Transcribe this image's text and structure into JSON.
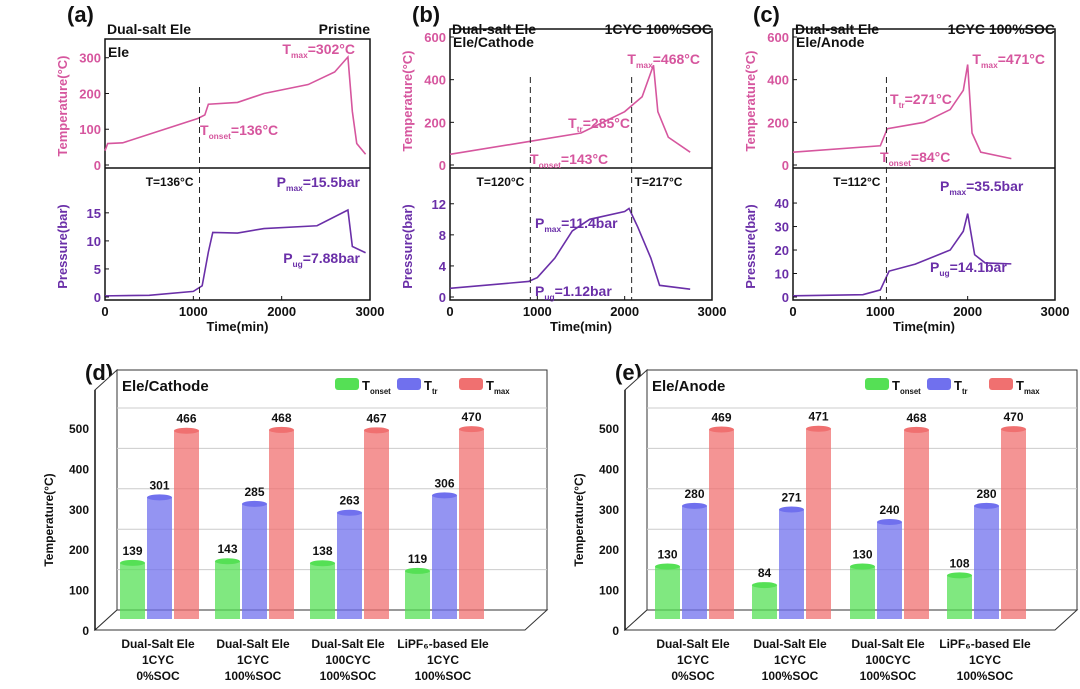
{
  "colors": {
    "temp": "#d6569e",
    "pres": "#6a2fa8",
    "green": "#55e055",
    "blue": "#7070ee",
    "red": "#f07070"
  },
  "chart_data": [
    {
      "type": "line",
      "panel": "(a)",
      "header_left": "Dual-salt Ele",
      "header_right": "Pristine",
      "sample": "Ele",
      "xlabel": "Time(min)",
      "xlim": [
        0,
        3000
      ],
      "xticks": [
        "0",
        "1000",
        "2000",
        "3000"
      ],
      "temp": {
        "ylabel": "Temperature(°C)",
        "ylim": [
          0,
          330
        ],
        "yticks": [
          "0",
          "100",
          "200",
          "300"
        ],
        "points": [
          [
            0,
            40
          ],
          [
            30,
            60
          ],
          [
            200,
            62
          ],
          [
            1050,
            130
          ],
          [
            1130,
            140
          ],
          [
            1170,
            170
          ],
          [
            1500,
            175
          ],
          [
            1800,
            200
          ],
          [
            2300,
            225
          ],
          [
            2600,
            260
          ],
          [
            2750,
            302
          ],
          [
            2800,
            150
          ],
          [
            2850,
            60
          ],
          [
            2950,
            30
          ]
        ]
      },
      "pres": {
        "ylabel": "Pressure(bar)",
        "ylim": [
          0,
          18
        ],
        "yticks": [
          "0",
          "5",
          "10",
          "15"
        ],
        "points": [
          [
            0,
            0.2
          ],
          [
            500,
            0.3
          ],
          [
            1000,
            1
          ],
          [
            1100,
            2
          ],
          [
            1170,
            8
          ],
          [
            1220,
            11.5
          ],
          [
            1500,
            11.4
          ],
          [
            1800,
            12.2
          ],
          [
            2400,
            12.7
          ],
          [
            2750,
            15.5
          ],
          [
            2800,
            9
          ],
          [
            2950,
            7.88
          ]
        ]
      },
      "vline": 1070,
      "vline_label": "T=136°C",
      "annotations": [
        {
          "main": "T",
          "sub": "max",
          "rest": "=302°C"
        },
        {
          "main": "T",
          "sub": "onset",
          "rest": "=136°C"
        },
        {
          "main": "P",
          "sub": "max",
          "rest": "=15.5bar"
        },
        {
          "main": "P",
          "sub": "ug",
          "rest": "=7.88bar"
        }
      ]
    },
    {
      "type": "line",
      "panel": "(b)",
      "header_left": "Dual-salt Ele",
      "header_right": "1CYC 100%SOC",
      "sample": "Ele/Cathode",
      "xlabel": "Time(min)",
      "xlim": [
        0,
        3000
      ],
      "xticks": [
        "0",
        "1000",
        "2000",
        "3000"
      ],
      "temp": {
        "ylabel": "Temperature(°C)",
        "ylim": [
          0,
          600
        ],
        "yticks": [
          "0",
          "200",
          "400",
          "600"
        ],
        "points": [
          [
            0,
            50
          ],
          [
            900,
            110
          ],
          [
            1500,
            150
          ],
          [
            2000,
            250
          ],
          [
            2200,
            320
          ],
          [
            2330,
            468
          ],
          [
            2380,
            250
          ],
          [
            2500,
            130
          ],
          [
            2750,
            60
          ]
        ]
      },
      "pres": {
        "ylabel": "Pressure(bar)",
        "ylim": [
          0,
          13
        ],
        "yticks": [
          "0",
          "4",
          "8",
          "12"
        ],
        "points": [
          [
            0,
            1.12
          ],
          [
            900,
            2
          ],
          [
            1000,
            2.5
          ],
          [
            1200,
            5
          ],
          [
            1400,
            8.5
          ],
          [
            1600,
            10
          ],
          [
            2000,
            11
          ],
          [
            2050,
            11.4
          ],
          [
            2150,
            9
          ],
          [
            2300,
            5
          ],
          [
            2400,
            1.5
          ],
          [
            2750,
            1
          ]
        ]
      },
      "vline": 920,
      "vline_label": "T=120°C",
      "vline2": 2080,
      "vline2_label": "T=217°C",
      "annotations": [
        {
          "main": "T",
          "sub": "max",
          "rest": "=468°C"
        },
        {
          "main": "T",
          "sub": "tr",
          "rest": "=285°C"
        },
        {
          "main": "T",
          "sub": "onset",
          "rest": "=143°C"
        },
        {
          "main": "P",
          "sub": "max",
          "rest": "=11.4bar"
        },
        {
          "main": "P",
          "sub": "ug",
          "rest": "=1.12bar"
        }
      ]
    },
    {
      "type": "line",
      "panel": "(c)",
      "header_left": "Dual-salt Ele",
      "header_right": "1CYC 100%SOC",
      "sample": "Ele/Anode",
      "xlabel": "Time(min)",
      "xlim": [
        0,
        3000
      ],
      "xticks": [
        "0",
        "1000",
        "2000",
        "3000"
      ],
      "temp": {
        "ylabel": "Temperature(°C)",
        "ylim": [
          0,
          600
        ],
        "yticks": [
          "0",
          "200",
          "400",
          "600"
        ],
        "points": [
          [
            0,
            60
          ],
          [
            1000,
            90
          ],
          [
            1080,
            170
          ],
          [
            1500,
            200
          ],
          [
            1800,
            260
          ],
          [
            1950,
            350
          ],
          [
            2000,
            471
          ],
          [
            2050,
            150
          ],
          [
            2150,
            60
          ],
          [
            2500,
            30
          ]
        ]
      },
      "pres": {
        "ylabel": "Pressure(bar)",
        "ylim": [
          0,
          43
        ],
        "yticks": [
          "0",
          "10",
          "20",
          "30",
          "40"
        ],
        "points": [
          [
            0,
            0.5
          ],
          [
            800,
            1
          ],
          [
            1000,
            3
          ],
          [
            1100,
            11
          ],
          [
            1400,
            14
          ],
          [
            1800,
            20
          ],
          [
            1950,
            28
          ],
          [
            2000,
            35.5
          ],
          [
            2080,
            18
          ],
          [
            2200,
            14.5
          ],
          [
            2500,
            14.1
          ]
        ]
      },
      "vline": 1070,
      "vline_label": "T=112°C",
      "annotations": [
        {
          "main": "T",
          "sub": "max",
          "rest": "=471°C"
        },
        {
          "main": "T",
          "sub": "tr",
          "rest": "=271°C"
        },
        {
          "main": "T",
          "sub": "onset",
          "rest": "=84°C"
        },
        {
          "main": "P",
          "sub": "max",
          "rest": "=35.5bar"
        },
        {
          "main": "P",
          "sub": "ug",
          "rest": "=14.1bar"
        }
      ]
    },
    {
      "type": "bar",
      "panel": "(d)",
      "title": "Ele/Cathode",
      "ylabel": "Temperature(°C)",
      "ylim": [
        0,
        550
      ],
      "yticks": [
        "0",
        "100",
        "200",
        "300",
        "400",
        "500"
      ],
      "legend": [
        {
          "main": "T",
          "sub": "onset"
        },
        {
          "main": "T",
          "sub": "tr"
        },
        {
          "main": "T",
          "sub": "max"
        }
      ],
      "categories": [
        [
          "Dual-Salt Ele",
          "1CYC",
          "0%SOC"
        ],
        [
          "Dual-Salt Ele",
          "1CYC",
          "100%SOC"
        ],
        [
          "Dual-Salt Ele",
          "100CYC",
          "100%SOC"
        ],
        [
          "LiPF₆-based Ele",
          "1CYC",
          "100%SOC"
        ]
      ],
      "series": [
        {
          "name": "Tonset",
          "values": [
            139,
            143,
            138,
            119
          ]
        },
        {
          "name": "Ttr",
          "values": [
            301,
            285,
            263,
            306
          ]
        },
        {
          "name": "Tmax",
          "values": [
            466,
            468,
            467,
            470
          ]
        }
      ]
    },
    {
      "type": "bar",
      "panel": "(e)",
      "title": "Ele/Anode",
      "ylabel": "Temperature(°C)",
      "ylim": [
        0,
        550
      ],
      "yticks": [
        "0",
        "100",
        "200",
        "300",
        "400",
        "500"
      ],
      "legend": [
        {
          "main": "T",
          "sub": "onset"
        },
        {
          "main": "T",
          "sub": "tr"
        },
        {
          "main": "T",
          "sub": "max"
        }
      ],
      "categories": [
        [
          "Dual-Salt Ele",
          "1CYC",
          "0%SOC"
        ],
        [
          "Dual-Salt Ele",
          "1CYC",
          "100%SOC"
        ],
        [
          "Dual-Salt Ele",
          "100CYC",
          "100%SOC"
        ],
        [
          "LiPF₆-based Ele",
          "1CYC",
          "100%SOC"
        ]
      ],
      "series": [
        {
          "name": "Tonset",
          "values": [
            130,
            84,
            130,
            108
          ]
        },
        {
          "name": "Ttr",
          "values": [
            280,
            271,
            240,
            280
          ]
        },
        {
          "name": "Tmax",
          "values": [
            469,
            471,
            468,
            470
          ]
        }
      ]
    }
  ]
}
